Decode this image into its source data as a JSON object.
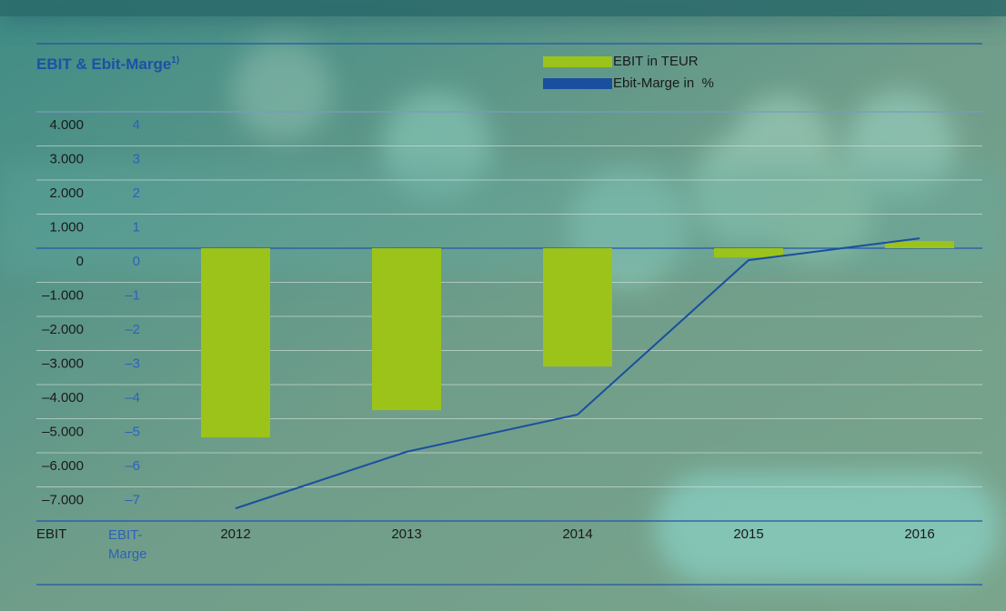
{
  "chart_data": {
    "type": "bar",
    "title": "EBIT & Ebit-Marge",
    "title_note": "1)",
    "categories": [
      "2012",
      "2013",
      "2014",
      "2015",
      "2016"
    ],
    "series": [
      {
        "name": "EBIT in TEUR",
        "type": "bar",
        "color": "#9bc31a",
        "values": [
          -5550,
          -4750,
          -3470,
          -270,
          210
        ]
      },
      {
        "name": "Ebit-Marge in  %",
        "type": "line",
        "axis": "y2",
        "color": "#1a4f9f",
        "values": [
          -7.63,
          -5.97,
          -4.88,
          -0.35,
          0.29
        ]
      }
    ],
    "y_label": "EBIT",
    "y2_label": "EBIT-Marge",
    "ylim": [
      -8000,
      4000
    ],
    "yticks": [
      {
        "value": 4000,
        "label": "4.000"
      },
      {
        "value": 3000,
        "label": "3.000"
      },
      {
        "value": 2000,
        "label": "2.000"
      },
      {
        "value": 1000,
        "label": "1.000"
      },
      0,
      {
        "value": -1000,
        "label": "–1.000"
      },
      {
        "value": -2000,
        "label": "–2.000"
      },
      {
        "value": -3000,
        "label": "–3.000"
      },
      {
        "value": -4000,
        "label": "–4.000"
      },
      {
        "value": -5000,
        "label": "–5.000"
      },
      {
        "value": -6000,
        "label": "–6.000"
      },
      {
        "value": -7000,
        "label": "–7.000"
      }
    ],
    "y2lim": [
      -8,
      4
    ],
    "y2ticks": [
      4,
      3,
      2,
      1,
      0,
      {
        "value": -1,
        "label": "–1"
      },
      {
        "value": -2,
        "label": "–2"
      },
      {
        "value": -3,
        "label": "–3"
      },
      {
        "value": -4,
        "label": "–4"
      },
      {
        "value": -5,
        "label": "–5"
      },
      {
        "value": -6,
        "label": "–6"
      },
      {
        "value": -7,
        "label": "–7"
      }
    ],
    "grid": true
  }
}
